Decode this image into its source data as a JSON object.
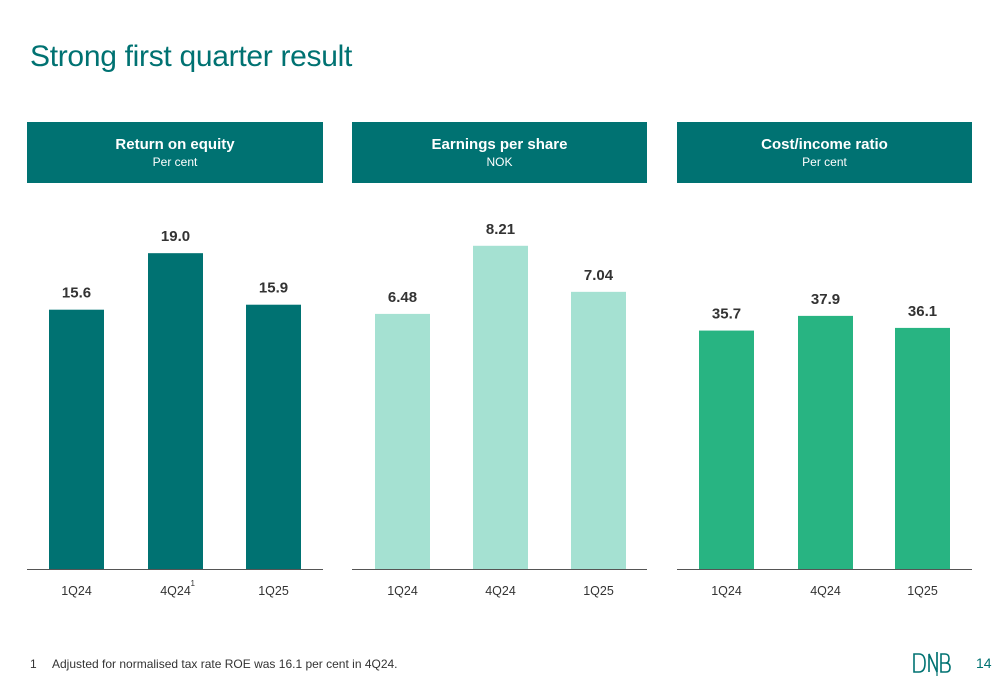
{
  "slide": {
    "title": "Strong first quarter result",
    "page_number": "14",
    "footnote_marker": "1",
    "footnote_text": "Adjusted for normalised tax rate ROE was 16.1 per cent in 4Q24.",
    "logo_text": "DNB"
  },
  "colors": {
    "header_bg": "#007272",
    "roe_bar": "#007272",
    "eps_bar": "#A5E1D2",
    "ci_bar": "#28B482",
    "axis_line": "#555555"
  },
  "chart_data": [
    {
      "type": "bar",
      "title": "Return on equity",
      "subtitle": "Per cent",
      "categories": [
        "1Q24",
        "4Q24",
        "1Q25"
      ],
      "category_superscripts": [
        "",
        "1",
        ""
      ],
      "values": [
        15.6,
        19.0,
        15.9
      ],
      "value_labels": [
        "15.6",
        "19.0",
        "15.9"
      ],
      "ylim": [
        0,
        22.5
      ],
      "grid": false,
      "color": "#007272"
    },
    {
      "type": "bar",
      "title": "Earnings per share",
      "subtitle": "NOK",
      "categories": [
        "1Q24",
        "4Q24",
        "1Q25"
      ],
      "category_superscripts": [
        "",
        "",
        ""
      ],
      "values": [
        6.48,
        8.21,
        7.04
      ],
      "value_labels": [
        "6.48",
        "8.21",
        "7.04"
      ],
      "ylim": [
        0,
        9.5
      ],
      "grid": false,
      "color": "#A5E1D2"
    },
    {
      "type": "bar",
      "title": "Cost/income ratio",
      "subtitle": "Per cent",
      "categories": [
        "1Q24",
        "4Q24",
        "1Q25"
      ],
      "category_superscripts": [
        "",
        "",
        ""
      ],
      "values": [
        35.7,
        37.9,
        36.1
      ],
      "value_labels": [
        "35.7",
        "37.9",
        "36.1"
      ],
      "ylim": [
        0,
        56
      ],
      "grid": false,
      "color": "#28B482"
    }
  ]
}
